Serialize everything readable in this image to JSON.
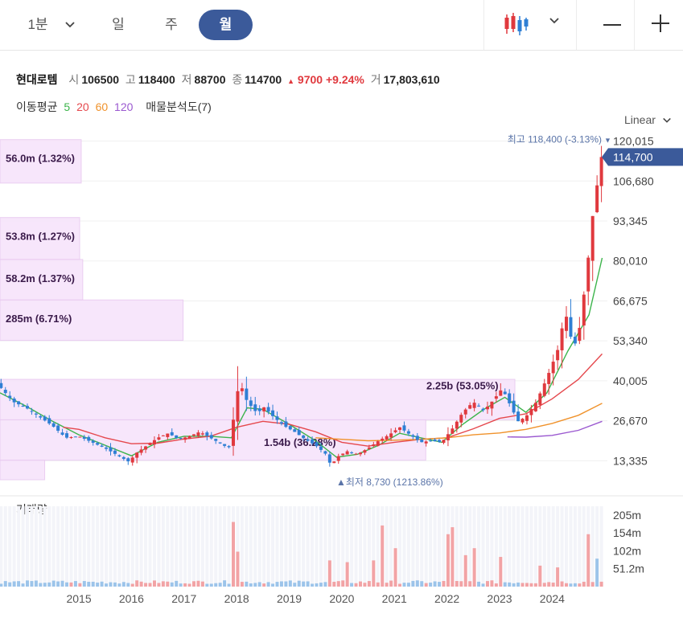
{
  "toolbar": {
    "timeframes": [
      "1분",
      "일",
      "주",
      "월"
    ],
    "active": "월",
    "chart_type_icon": "candlestick-icon",
    "chevron_icon": "chevron-down-icon",
    "zoom_out_icon": "minus-icon",
    "zoom_in_icon": "plus-icon"
  },
  "quote": {
    "name": "현대로템",
    "open_label": "시",
    "open": "106500",
    "high_label": "고",
    "high": "118400",
    "low_label": "저",
    "low": "88700",
    "close_label": "종",
    "close": "114700",
    "change": "9700",
    "change_pct": "+9.24%",
    "volume_label": "거",
    "volume": "17,803,610"
  },
  "moving_average": {
    "label": "이동평균",
    "periods": [
      {
        "value": "5",
        "color": "#3cb44b"
      },
      {
        "value": "20",
        "color": "#e5484d"
      },
      {
        "value": "60",
        "color": "#f0922b"
      },
      {
        "value": "120",
        "color": "#9b59d0"
      }
    ],
    "volume_profile_label": "매물분석도(7)"
  },
  "scale_label": "Linear",
  "colors": {
    "up": "#e0393e",
    "down": "#2f7fd4",
    "accent": "#3b5a9a",
    "profile": "#f7e4fb"
  },
  "chart_data": {
    "type": "candlestick",
    "y_ticks": [
      "120,015",
      "106,680",
      "93,345",
      "80,010",
      "66,675",
      "53,340",
      "40,005",
      "26,670",
      "13,335"
    ],
    "y_tick_values": [
      120015,
      106680,
      93345,
      80010,
      66675,
      53340,
      40005,
      26670,
      13335
    ],
    "ylim": [
      7000,
      121500
    ],
    "current_price_label": "114,700",
    "current_price": 114700,
    "high_annotation": "최고 118,400 (-3.13%)",
    "high_value": 118400,
    "low_annotation": "최저 8,730 (1213.86%)",
    "low_value": 8730,
    "x_labels": [
      "2015",
      "2016",
      "2017",
      "2018",
      "2019",
      "2020",
      "2021",
      "2022",
      "2023",
      "2024"
    ],
    "x_range": [
      2014.0,
      2025.55
    ],
    "volume_profile": [
      {
        "label": "56.0m (1.32%)",
        "low": 106000,
        "high": 120500,
        "share": 1.32
      },
      {
        "label": "53.8m (1.27%)",
        "low": 80500,
        "high": 94500,
        "share": 1.27
      },
      {
        "label": "58.2m (1.37%)",
        "low": 67000,
        "high": 80500,
        "share": 1.37
      },
      {
        "label": "285m (6.71%)",
        "low": 53500,
        "high": 67000,
        "share": 6.71
      },
      {
        "label": "2.25b (53.05%)",
        "low": 27000,
        "high": 40500,
        "share": 53.05
      },
      {
        "label": "1.54b (36.28%)",
        "low": 13500,
        "high": 27000,
        "share": 36.28
      },
      {
        "label": "",
        "low": 7000,
        "high": 13500,
        "share": 0.4
      }
    ],
    "price_path": [
      [
        2014.0,
        38000
      ],
      [
        2014.25,
        33000
      ],
      [
        2014.5,
        31000
      ],
      [
        2014.75,
        28000
      ],
      [
        2015.0,
        25000
      ],
      [
        2015.25,
        21000
      ],
      [
        2015.5,
        21500
      ],
      [
        2015.75,
        19500
      ],
      [
        2016.0,
        17500
      ],
      [
        2016.25,
        15000
      ],
      [
        2016.45,
        13000
      ],
      [
        2016.6,
        16000
      ],
      [
        2016.8,
        18500
      ],
      [
        2017.0,
        21000
      ],
      [
        2017.2,
        22500
      ],
      [
        2017.4,
        20500
      ],
      [
        2017.6,
        21500
      ],
      [
        2017.8,
        23000
      ],
      [
        2018.0,
        21000
      ],
      [
        2018.2,
        19000
      ],
      [
        2018.35,
        17500
      ],
      [
        2018.45,
        28500
      ],
      [
        2018.55,
        40000
      ],
      [
        2018.7,
        33000
      ],
      [
        2018.9,
        29000
      ],
      [
        2019.0,
        31500
      ],
      [
        2019.2,
        28000
      ],
      [
        2019.4,
        25000
      ],
      [
        2019.6,
        23000
      ],
      [
        2019.8,
        20500
      ],
      [
        2020.0,
        18500
      ],
      [
        2020.2,
        15500
      ],
      [
        2020.3,
        11500
      ],
      [
        2020.4,
        14500
      ],
      [
        2020.6,
        16500
      ],
      [
        2020.8,
        15500
      ],
      [
        2021.0,
        17500
      ],
      [
        2021.2,
        20000
      ],
      [
        2021.4,
        22000
      ],
      [
        2021.6,
        24500
      ],
      [
        2021.8,
        22000
      ],
      [
        2022.0,
        19500
      ],
      [
        2022.2,
        20000
      ],
      [
        2022.4,
        19500
      ],
      [
        2022.6,
        24000
      ],
      [
        2022.8,
        29500
      ],
      [
        2023.0,
        33000
      ],
      [
        2023.2,
        30000
      ],
      [
        2023.4,
        34000
      ],
      [
        2023.55,
        37500
      ],
      [
        2023.7,
        32000
      ],
      [
        2023.85,
        26500
      ],
      [
        2024.0,
        28000
      ],
      [
        2024.2,
        33000
      ],
      [
        2024.4,
        41000
      ],
      [
        2024.6,
        50000
      ],
      [
        2024.75,
        63000
      ],
      [
        2024.9,
        51000
      ],
      [
        2025.0,
        55000
      ],
      [
        2025.15,
        75000
      ],
      [
        2025.3,
        100000
      ],
      [
        2025.45,
        114700
      ]
    ],
    "ma": [
      {
        "period": "5",
        "color": "#3cb44b",
        "points": [
          [
            2014.0,
            36000
          ],
          [
            2014.5,
            31500
          ],
          [
            2015.0,
            26500
          ],
          [
            2015.5,
            22000
          ],
          [
            2016.0,
            18500
          ],
          [
            2016.5,
            15000
          ],
          [
            2017.0,
            19500
          ],
          [
            2017.5,
            21500
          ],
          [
            2018.0,
            21500
          ],
          [
            2018.4,
            21000
          ],
          [
            2018.7,
            31000
          ],
          [
            2019.0,
            30500
          ],
          [
            2019.5,
            25500
          ],
          [
            2020.0,
            20000
          ],
          [
            2020.4,
            14500
          ],
          [
            2020.8,
            15500
          ],
          [
            2021.2,
            18500
          ],
          [
            2021.6,
            22500
          ],
          [
            2022.0,
            21000
          ],
          [
            2022.4,
            19500
          ],
          [
            2022.8,
            25500
          ],
          [
            2023.2,
            30500
          ],
          [
            2023.6,
            34500
          ],
          [
            2024.0,
            29500
          ],
          [
            2024.4,
            36000
          ],
          [
            2024.8,
            50000
          ],
          [
            2025.2,
            62000
          ],
          [
            2025.45,
            81000
          ]
        ]
      },
      {
        "period": "20",
        "color": "#e5484d",
        "points": [
          [
            2015.2,
            24500
          ],
          [
            2015.5,
            23800
          ],
          [
            2016.0,
            21000
          ],
          [
            2016.5,
            19000
          ],
          [
            2017.0,
            19200
          ],
          [
            2017.5,
            20600
          ],
          [
            2018.0,
            21500
          ],
          [
            2018.5,
            24500
          ],
          [
            2019.0,
            26500
          ],
          [
            2019.5,
            25500
          ],
          [
            2020.0,
            23000
          ],
          [
            2020.5,
            19500
          ],
          [
            2021.0,
            18200
          ],
          [
            2021.5,
            19500
          ],
          [
            2022.0,
            20500
          ],
          [
            2022.5,
            21000
          ],
          [
            2023.0,
            24000
          ],
          [
            2023.5,
            27500
          ],
          [
            2024.0,
            29000
          ],
          [
            2024.5,
            34000
          ],
          [
            2025.0,
            40500
          ],
          [
            2025.45,
            49000
          ]
        ]
      },
      {
        "period": "60",
        "color": "#f0922b",
        "points": [
          [
            2020.0,
            21000
          ],
          [
            2020.5,
            20500
          ],
          [
            2021.0,
            20000
          ],
          [
            2021.5,
            20200
          ],
          [
            2022.0,
            20500
          ],
          [
            2022.5,
            21000
          ],
          [
            2023.0,
            22000
          ],
          [
            2023.5,
            22600
          ],
          [
            2024.0,
            23800
          ],
          [
            2024.5,
            25800
          ],
          [
            2025.0,
            28500
          ],
          [
            2025.45,
            32500
          ]
        ]
      },
      {
        "period": "120",
        "color": "#9b59d0",
        "points": [
          [
            2023.65,
            21300
          ],
          [
            2024.0,
            21200
          ],
          [
            2024.5,
            21800
          ],
          [
            2025.0,
            23500
          ],
          [
            2025.45,
            26500
          ]
        ]
      }
    ],
    "volume": {
      "label": "거래량",
      "y_ticks": [
        "205m",
        "154m",
        "102m",
        "51.2m"
      ],
      "y_tick_values": [
        205,
        154,
        102,
        51.2
      ],
      "ylim": [
        0,
        230
      ],
      "unit": "m",
      "spikes": [
        {
          "x": 2018.45,
          "value": 185,
          "dir": "up"
        },
        {
          "x": 2018.55,
          "value": 100,
          "dir": "up"
        },
        {
          "x": 2020.3,
          "value": 75,
          "dir": "up"
        },
        {
          "x": 2020.6,
          "value": 70,
          "dir": "up"
        },
        {
          "x": 2021.1,
          "value": 75,
          "dir": "up"
        },
        {
          "x": 2021.25,
          "value": 175,
          "dir": "up"
        },
        {
          "x": 2021.55,
          "value": 110,
          "dir": "up"
        },
        {
          "x": 2022.5,
          "value": 150,
          "dir": "up"
        },
        {
          "x": 2022.6,
          "value": 170,
          "dir": "up"
        },
        {
          "x": 2022.85,
          "value": 90,
          "dir": "up"
        },
        {
          "x": 2023.0,
          "value": 110,
          "dir": "up"
        },
        {
          "x": 2023.55,
          "value": 85,
          "dir": "up"
        },
        {
          "x": 2024.25,
          "value": 60,
          "dir": "up"
        },
        {
          "x": 2024.6,
          "value": 55,
          "dir": "up"
        },
        {
          "x": 2025.2,
          "value": 150,
          "dir": "up"
        },
        {
          "x": 2025.35,
          "value": 80,
          "dir": "down"
        }
      ]
    }
  }
}
